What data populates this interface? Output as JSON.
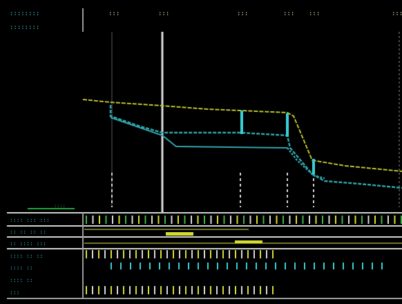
{
  "colors": {
    "background": "#000000",
    "frame": "#cfd3cf",
    "design_line": "#b9c22a",
    "ground_line": "#2fa3aa",
    "label_text": "#38cfd6",
    "station_text": "#e2e2b0",
    "tick_yellow": "#d7dc33",
    "tick_green": "#3fb54a",
    "tick_white": "#d8d8d8",
    "scale_bar": "#23a43a"
  },
  "header": {
    "title_line_1": "::::::::",
    "title_line_2": "::::::::",
    "station_marks": [
      {
        "id": "s1",
        "text": ":::"
      },
      {
        "id": "s2",
        "text": ":::"
      },
      {
        "id": "s3",
        "text": ":::"
      },
      {
        "id": "s4",
        "text": ":::"
      },
      {
        "id": "s5",
        "text": ":::"
      },
      {
        "id": "s6",
        "text": ":::"
      }
    ]
  },
  "scale_bar": {
    "label": "::::"
  },
  "rows": [
    {
      "id": "row-1",
      "label": ":::: ::: :::"
    },
    {
      "id": "row-2",
      "label": ":: :: :: ::"
    },
    {
      "id": "row-3",
      "label": ":: :::: :::"
    },
    {
      "id": "row-4",
      "label": ":::: :: ::"
    },
    {
      "id": "row-5",
      "label": ":::: ::"
    },
    {
      "id": "row-6",
      "label": ":::: ::"
    },
    {
      "id": "row-7",
      "label": ":::"
    }
  ]
}
